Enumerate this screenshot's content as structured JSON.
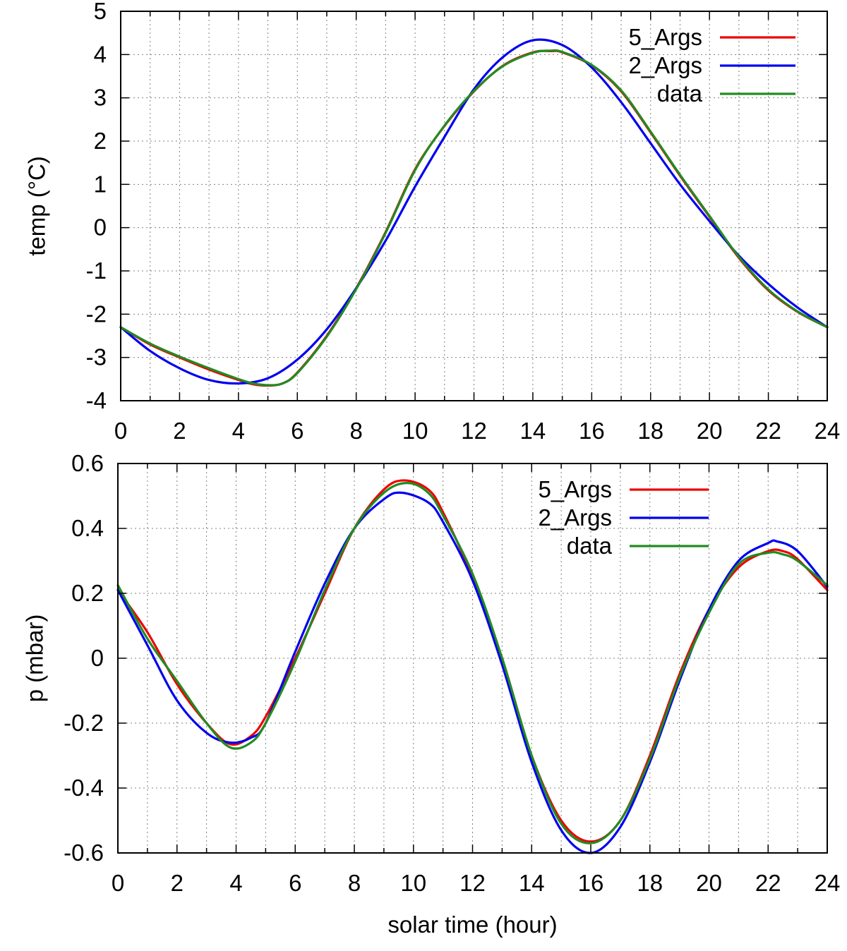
{
  "chart_data": [
    {
      "type": "line",
      "title": "",
      "xlabel": "",
      "ylabel": "temp (°C)",
      "xlim": [
        0,
        24
      ],
      "ylim": [
        -4,
        5
      ],
      "xticks": [
        0,
        2,
        4,
        6,
        8,
        10,
        12,
        14,
        16,
        18,
        20,
        22,
        24
      ],
      "yticks": [
        -4,
        -3,
        -2,
        -1,
        0,
        1,
        2,
        3,
        4,
        5
      ],
      "xtick_labels": [
        "0",
        "2",
        "4",
        "6",
        "8",
        "10",
        "12",
        "14",
        "16",
        "18",
        "20",
        "22",
        "24"
      ],
      "ytick_labels": [
        "-4",
        "-3",
        "-2",
        "-1",
        "0",
        "1",
        "2",
        "3",
        "4",
        "5"
      ],
      "grid": true,
      "legend_position": "top-right",
      "series": [
        {
          "name": "5_Args",
          "color": "#ee0000",
          "x": [
            0,
            1,
            2,
            3,
            4,
            4.5,
            5,
            5.5,
            6,
            7,
            8,
            9,
            10,
            11,
            12,
            13,
            14,
            14.6,
            15,
            16,
            17,
            18,
            19,
            20,
            21,
            22,
            23,
            24
          ],
          "y": [
            -2.3,
            -2.7,
            -3.0,
            -3.28,
            -3.52,
            -3.62,
            -3.65,
            -3.6,
            -3.35,
            -2.5,
            -1.4,
            -0.1,
            1.35,
            2.35,
            3.15,
            3.75,
            4.05,
            4.08,
            4.05,
            3.75,
            3.15,
            2.2,
            1.2,
            0.25,
            -0.7,
            -1.45,
            -1.95,
            -2.3
          ]
        },
        {
          "name": "2_Args",
          "color": "#0000ee",
          "x": [
            0,
            1,
            2,
            3,
            4,
            5,
            6,
            7,
            8,
            9,
            10,
            11,
            12,
            13,
            14,
            15,
            16,
            17,
            18,
            19,
            20,
            21,
            22,
            23,
            24
          ],
          "y": [
            -2.3,
            -2.85,
            -3.25,
            -3.52,
            -3.6,
            -3.48,
            -3.05,
            -2.35,
            -1.4,
            -0.3,
            0.95,
            2.1,
            3.2,
            3.95,
            4.33,
            4.22,
            3.7,
            2.9,
            1.95,
            1.0,
            0.15,
            -0.65,
            -1.3,
            -1.85,
            -2.3
          ]
        },
        {
          "name": "data",
          "color": "#228b22",
          "x": [
            0,
            1,
            2,
            3,
            4,
            4.5,
            5,
            5.5,
            6,
            7,
            8,
            9,
            10,
            11,
            12,
            13,
            14,
            14.6,
            15,
            16,
            17,
            18,
            19,
            20,
            21,
            22,
            23,
            24
          ],
          "y": [
            -2.3,
            -2.68,
            -2.98,
            -3.25,
            -3.5,
            -3.6,
            -3.64,
            -3.6,
            -3.36,
            -2.52,
            -1.42,
            -0.12,
            1.33,
            2.36,
            3.16,
            3.74,
            4.04,
            4.09,
            4.06,
            3.76,
            3.17,
            2.22,
            1.22,
            0.27,
            -0.68,
            -1.43,
            -1.94,
            -2.3
          ]
        }
      ]
    },
    {
      "type": "line",
      "title": "",
      "xlabel": "solar time (hour)",
      "ylabel": "p (mbar)",
      "xlim": [
        0,
        24
      ],
      "ylim": [
        -0.6,
        0.6
      ],
      "xticks": [
        0,
        2,
        4,
        6,
        8,
        10,
        12,
        14,
        16,
        18,
        20,
        22,
        24
      ],
      "yticks": [
        -0.6,
        -0.4,
        -0.2,
        0,
        0.2,
        0.4,
        0.6
      ],
      "xtick_labels": [
        "0",
        "2",
        "4",
        "6",
        "8",
        "10",
        "12",
        "14",
        "16",
        "18",
        "20",
        "22",
        "24"
      ],
      "ytick_labels": [
        "-0.6",
        "-0.4",
        "-0.2",
        "0",
        "0.2",
        "0.4",
        "0.6"
      ],
      "grid": true,
      "legend_position": "top-right",
      "series": [
        {
          "name": "5_Args",
          "color": "#ee0000",
          "x": [
            0,
            1,
            2,
            3,
            3.8,
            4.5,
            5,
            6,
            7,
            8,
            9,
            9.7,
            10.5,
            11,
            12,
            13,
            14,
            15,
            16,
            17,
            18,
            19,
            20,
            21,
            22,
            22.5,
            23,
            24
          ],
          "y": [
            0.21,
            0.08,
            -0.08,
            -0.2,
            -0.265,
            -0.24,
            -0.18,
            0.0,
            0.2,
            0.4,
            0.52,
            0.548,
            0.52,
            0.45,
            0.25,
            0.0,
            -0.3,
            -0.5,
            -0.565,
            -0.5,
            -0.3,
            -0.05,
            0.15,
            0.28,
            0.33,
            0.33,
            0.305,
            0.21
          ]
        },
        {
          "name": "2_Args",
          "color": "#0000ee",
          "x": [
            0,
            1,
            2,
            3,
            3.8,
            4.5,
            5,
            6,
            7,
            8,
            9,
            9.6,
            10.5,
            11,
            12,
            13,
            14,
            15,
            16,
            17,
            18,
            19,
            20,
            21,
            22,
            22.3,
            23,
            24
          ],
          "y": [
            0.21,
            0.04,
            -0.13,
            -0.23,
            -0.26,
            -0.245,
            -0.2,
            0.02,
            0.23,
            0.4,
            0.49,
            0.51,
            0.48,
            0.42,
            0.24,
            -0.02,
            -0.32,
            -0.53,
            -0.6,
            -0.52,
            -0.32,
            -0.07,
            0.15,
            0.3,
            0.355,
            0.36,
            0.33,
            0.22
          ]
        },
        {
          "name": "data",
          "color": "#228b22",
          "x": [
            0,
            1,
            2,
            3,
            3.8,
            4.5,
            5,
            6,
            7,
            8,
            9,
            9.8,
            10.5,
            11,
            12,
            13,
            14,
            15,
            16,
            17,
            18,
            19,
            20,
            21,
            22,
            22.5,
            23,
            24
          ],
          "y": [
            0.225,
            0.06,
            -0.07,
            -0.2,
            -0.275,
            -0.26,
            -0.2,
            -0.01,
            0.21,
            0.4,
            0.51,
            0.54,
            0.51,
            0.44,
            0.26,
            0.0,
            -0.3,
            -0.51,
            -0.57,
            -0.5,
            -0.31,
            -0.06,
            0.14,
            0.29,
            0.325,
            0.32,
            0.3,
            0.225
          ]
        }
      ]
    }
  ]
}
